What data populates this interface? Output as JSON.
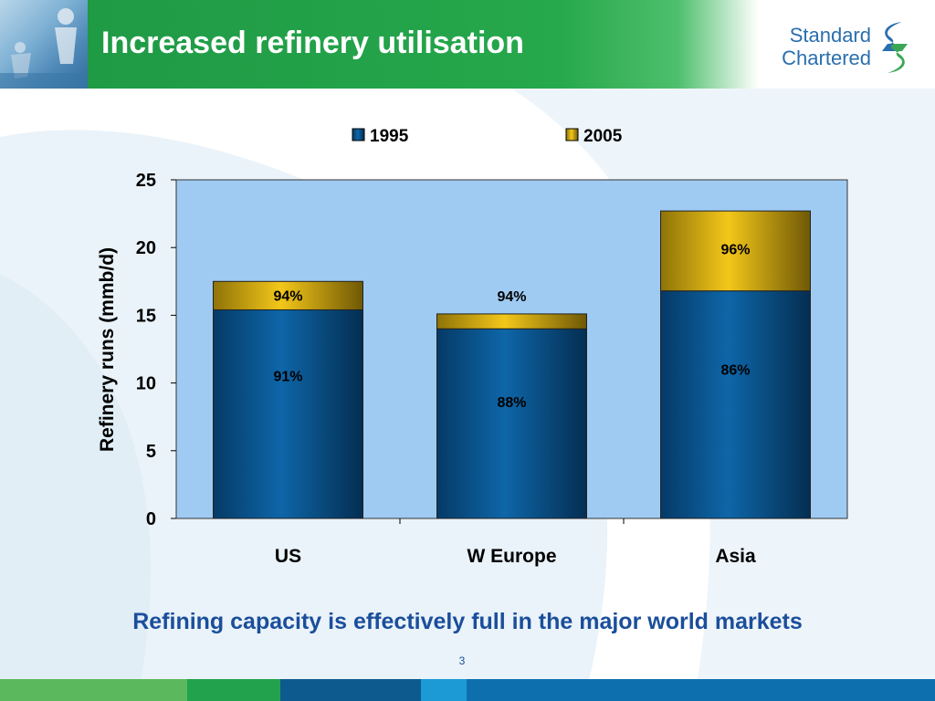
{
  "slide": {
    "title": "Increased refinery utilisation",
    "caption": "Refining capacity is effectively full in the major world markets",
    "page_number": "3"
  },
  "logo": {
    "line1": "Standard",
    "line2": "Chartered"
  },
  "colors": {
    "header_green": "#26a84c",
    "series_1995": "#0b5a98",
    "series_2005": "#d4a90a",
    "plot_bg": "#9fcbf3",
    "caption_blue": "#1b4e9b",
    "footer": [
      "#5cb85c",
      "#22a24c",
      "#0d5a8e",
      "#1b9ad6",
      "#0e6fae"
    ]
  },
  "chart_data": {
    "type": "bar",
    "stacked": true,
    "categories": [
      "US",
      "W Europe",
      "Asia"
    ],
    "series": [
      {
        "name": "1995",
        "values": [
          15.4,
          14.0,
          16.8
        ],
        "labels": [
          "91%",
          "88%",
          "86%"
        ]
      },
      {
        "name": "2005",
        "values": [
          2.1,
          1.1,
          5.9
        ],
        "labels": [
          "94%",
          "94%",
          "96%"
        ]
      }
    ],
    "xlabel": "",
    "ylabel": "Refinery runs (mmb/d)",
    "ylim": [
      0,
      25
    ],
    "yticks": [
      0,
      5,
      10,
      15,
      20,
      25
    ],
    "legend": "top",
    "grid": false
  }
}
